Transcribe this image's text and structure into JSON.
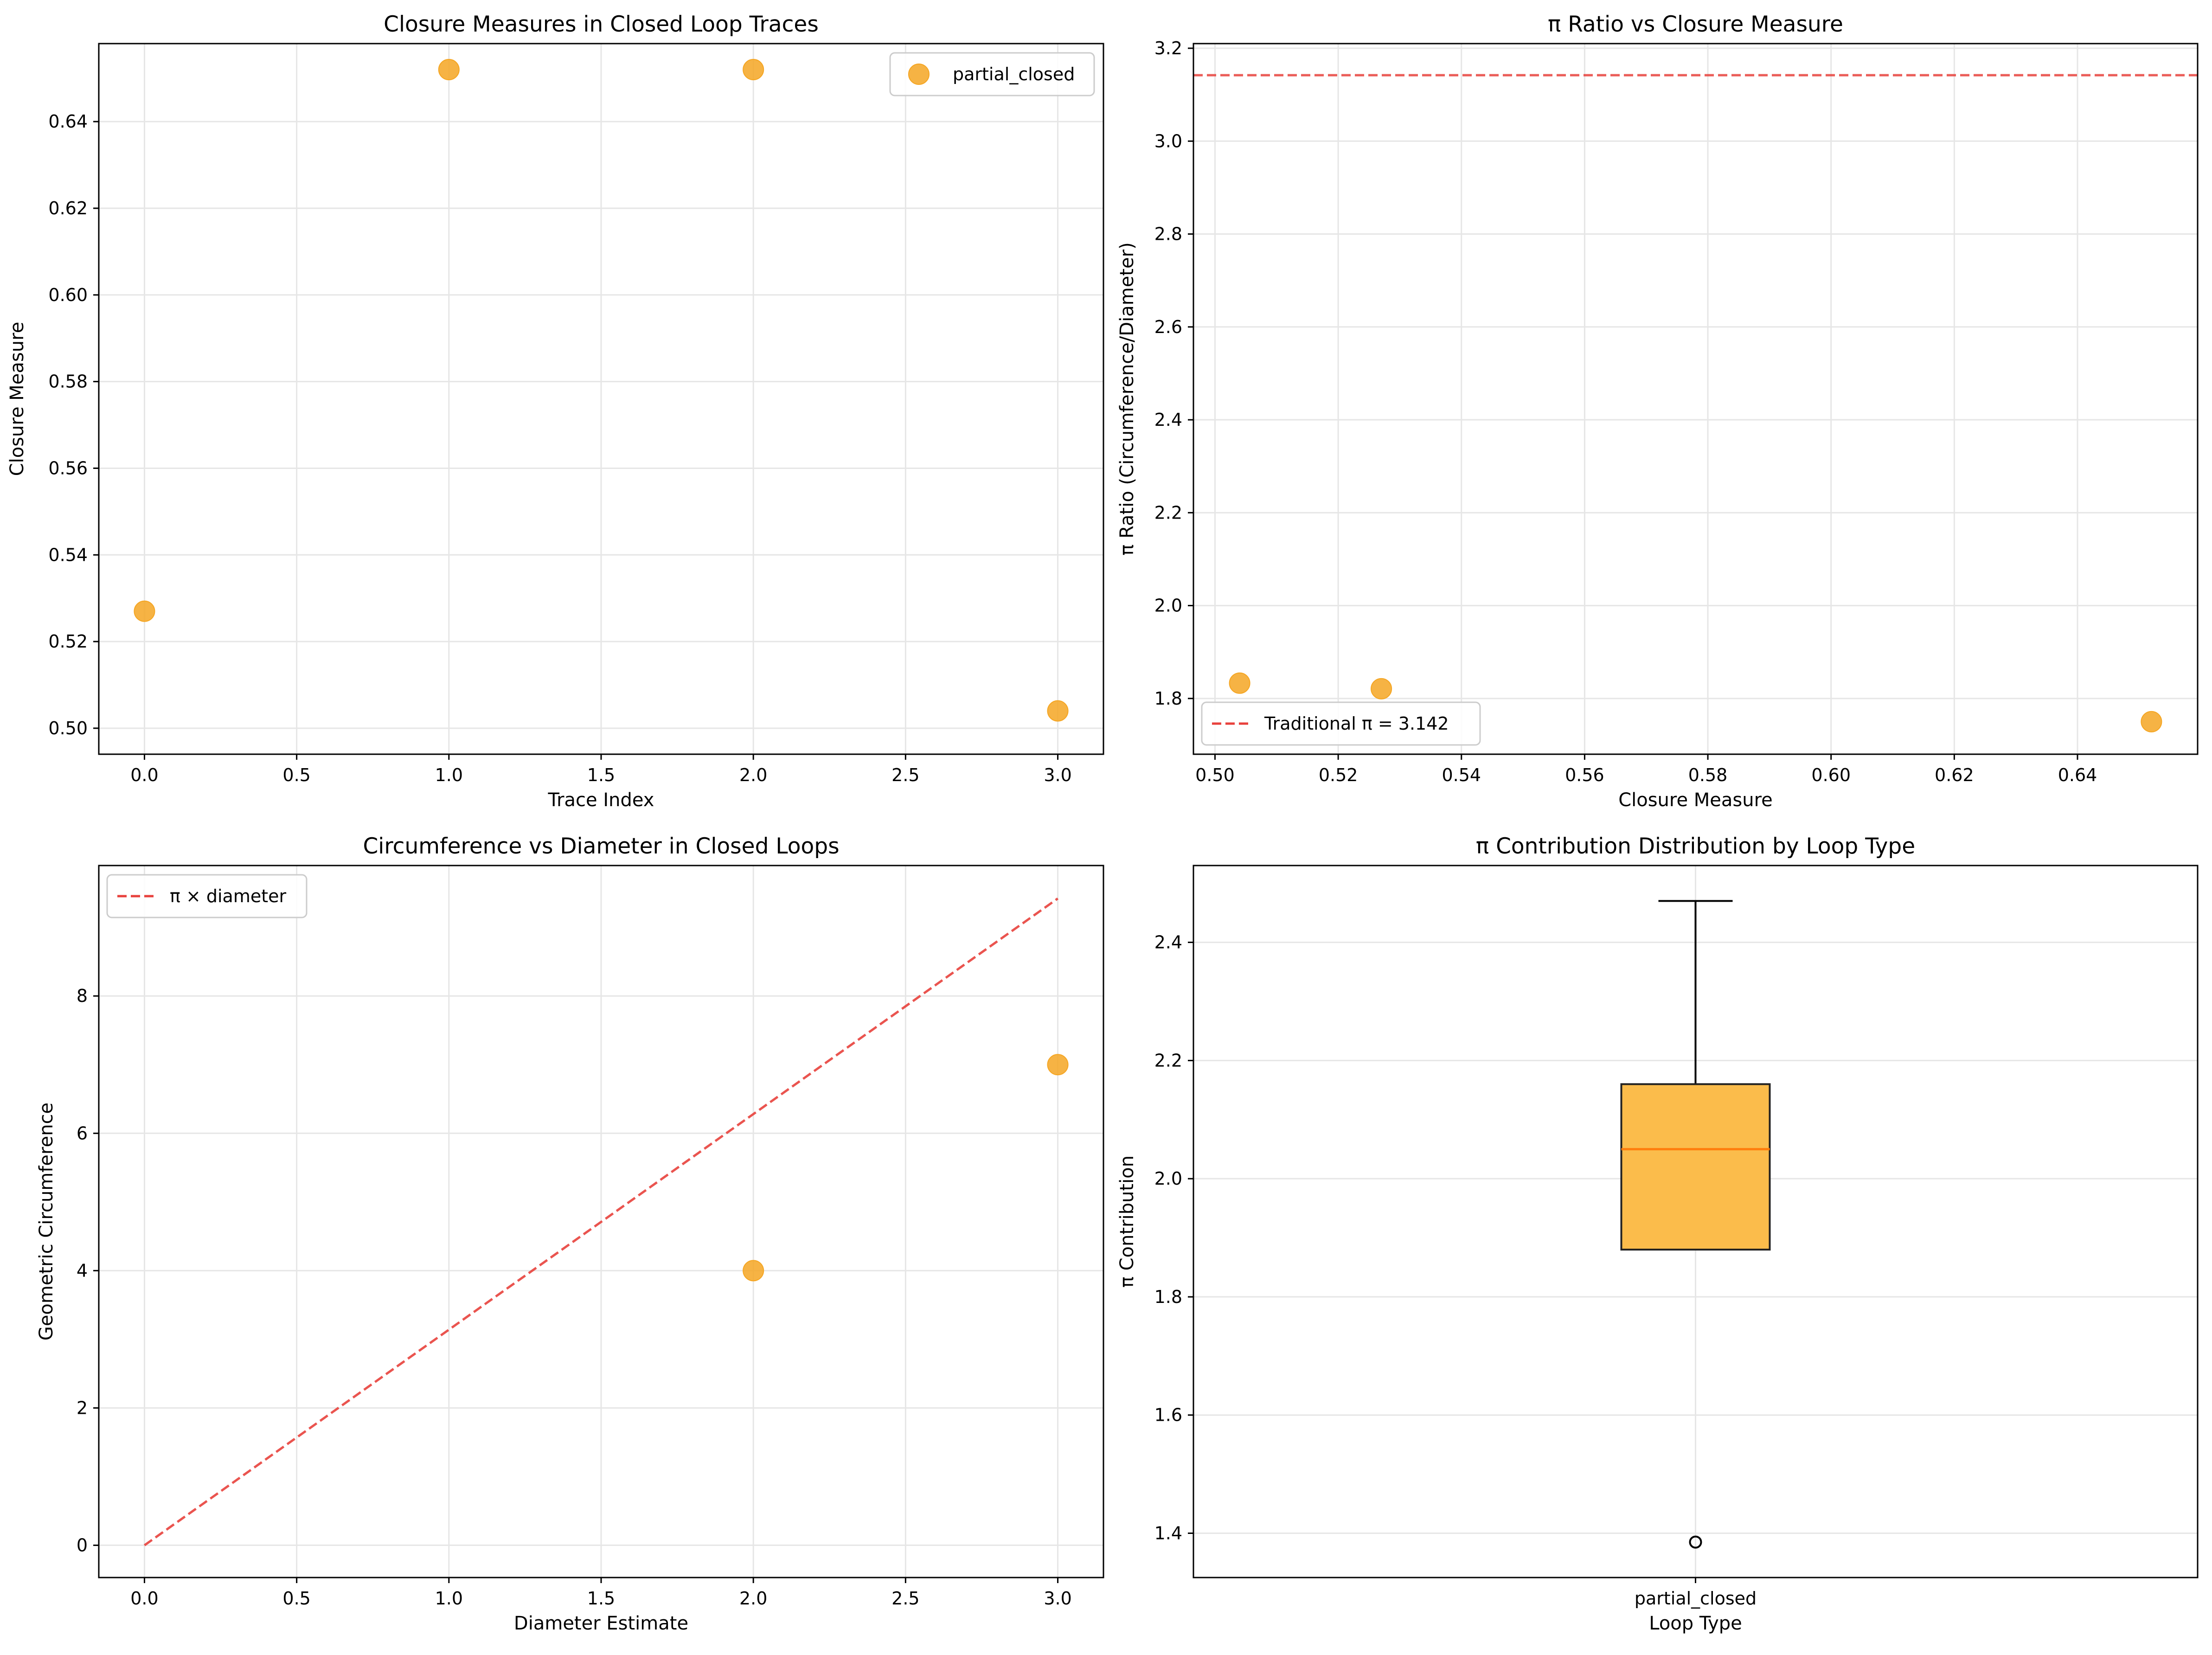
{
  "chart_data": [
    {
      "type": "scatter",
      "title": "Closure Measures in Closed Loop Traces",
      "xlabel": "Trace Index",
      "ylabel": "Closure Measure",
      "xlim": [
        -0.15,
        3.15
      ],
      "ylim": [
        0.494,
        0.658
      ],
      "xticks": [
        0.0,
        0.5,
        1.0,
        1.5,
        2.0,
        2.5,
        3.0
      ],
      "xtick_labels": [
        "0.0",
        "0.5",
        "1.0",
        "1.5",
        "2.0",
        "2.5",
        "3.0"
      ],
      "yticks": [
        0.5,
        0.52,
        0.54,
        0.56,
        0.58,
        0.6,
        0.62,
        0.64
      ],
      "ytick_labels": [
        "0.50",
        "0.52",
        "0.54",
        "0.56",
        "0.58",
        "0.60",
        "0.62",
        "0.64"
      ],
      "grid": true,
      "legend": "top-right",
      "series": [
        {
          "name": "partial_closed",
          "color": "#f5a623",
          "points": [
            [
              0,
              0.527
            ],
            [
              1,
              0.652
            ],
            [
              2,
              0.652
            ],
            [
              3,
              0.504
            ]
          ]
        }
      ]
    },
    {
      "type": "scatter",
      "title": "π Ratio vs Closure Measure",
      "xlabel": "Closure Measure",
      "ylabel": "π Ratio (Circumference/Diameter)",
      "xlim": [
        0.4965,
        0.6595
      ],
      "ylim": [
        1.68,
        3.21
      ],
      "xticks": [
        0.5,
        0.52,
        0.54,
        0.56,
        0.58,
        0.6,
        0.62,
        0.64
      ],
      "xtick_labels": [
        "0.50",
        "0.52",
        "0.54",
        "0.56",
        "0.58",
        "0.60",
        "0.62",
        "0.64"
      ],
      "yticks": [
        1.8,
        2.0,
        2.2,
        2.4,
        2.6,
        2.8,
        3.0,
        3.2
      ],
      "ytick_labels": [
        "1.8",
        "2.0",
        "2.2",
        "2.4",
        "2.6",
        "2.8",
        "3.0",
        "3.2"
      ],
      "grid": true,
      "legend": "bottom-left",
      "hlines": [
        {
          "name": "Traditional π = 3.142",
          "y": 3.142,
          "color": "#e8413c",
          "style": "dashed"
        }
      ],
      "series": [
        {
          "color": "#f5a623",
          "points": [
            [
              0.504,
              1.833
            ],
            [
              0.527,
              1.821
            ],
            [
              0.652,
              1.75
            ]
          ]
        }
      ]
    },
    {
      "type": "scatter",
      "title": "Circumference vs Diameter in Closed Loops",
      "xlabel": "Diameter Estimate",
      "ylabel": "Geometric Circumference",
      "xlim": [
        -0.15,
        3.15
      ],
      "ylim": [
        -0.47,
        9.9
      ],
      "xticks": [
        0.0,
        0.5,
        1.0,
        1.5,
        2.0,
        2.5,
        3.0
      ],
      "xtick_labels": [
        "0.0",
        "0.5",
        "1.0",
        "1.5",
        "2.0",
        "2.5",
        "3.0"
      ],
      "yticks": [
        0,
        2,
        4,
        6,
        8
      ],
      "ytick_labels": [
        "0",
        "2",
        "4",
        "6",
        "8"
      ],
      "grid": true,
      "legend": "top-left",
      "lines": [
        {
          "name": "π × diameter",
          "color": "#e8413c",
          "style": "dashed",
          "points": [
            [
              0,
              0
            ],
            [
              3,
              9.42
            ]
          ]
        }
      ],
      "series": [
        {
          "color": "#f5a623",
          "points": [
            [
              2,
              4.0
            ],
            [
              3,
              7.0
            ]
          ]
        }
      ]
    },
    {
      "type": "box",
      "title": "π Contribution Distribution by Loop Type",
      "xlabel": "Loop Type",
      "ylabel": "π Contribution",
      "categories": [
        "partial_closed"
      ],
      "ylim": [
        1.325,
        2.53
      ],
      "yticks": [
        1.4,
        1.6,
        1.8,
        2.0,
        2.2,
        2.4
      ],
      "ytick_labels": [
        "1.4",
        "1.6",
        "1.8",
        "2.0",
        "2.2",
        "2.4"
      ],
      "grid": true,
      "boxes": [
        {
          "category": "partial_closed",
          "q1": 1.88,
          "median": 2.05,
          "q3": 2.16,
          "whisker_low": 1.88,
          "whisker_high": 2.47,
          "outliers": [
            1.385
          ],
          "box_color": "#fbbc4b",
          "median_color": "#ff7f0e"
        }
      ]
    }
  ]
}
